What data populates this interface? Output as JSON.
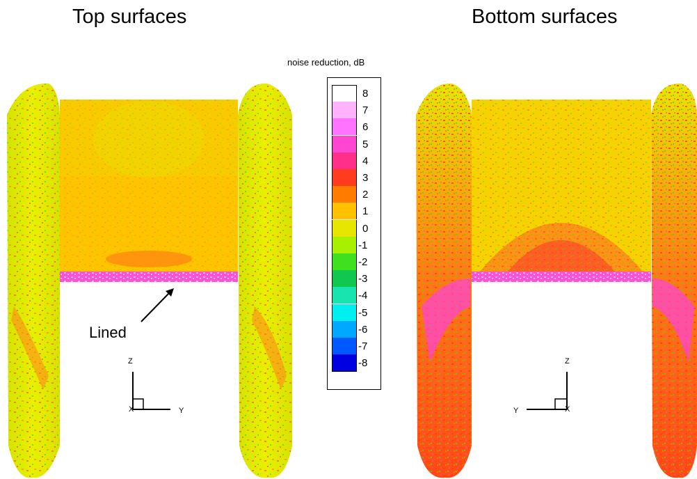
{
  "panels": {
    "top": {
      "title": "Top surfaces"
    },
    "bottom": {
      "title": "Bottom surfaces"
    }
  },
  "legend": {
    "title": "noise reduction, dB",
    "levels": [
      8,
      7,
      6,
      5,
      4,
      3,
      2,
      1,
      0,
      -1,
      -2,
      -3,
      -4,
      -5,
      -6,
      -7,
      -8
    ],
    "colors": [
      "#ffffff",
      "#ffb3ff",
      "#ff73ff",
      "#ff46d2",
      "#ff2f8a",
      "#ff3c1e",
      "#ff7c00",
      "#ffc100",
      "#e6e600",
      "#a6f000",
      "#3fe020",
      "#10c850",
      "#18e4b0",
      "#00f0f0",
      "#00a8ff",
      "#0058ff",
      "#0000e0"
    ]
  },
  "annotation": {
    "text": "Lined"
  },
  "axes": {
    "left": {
      "z": "Z",
      "x": "X",
      "y": "Y"
    },
    "right": {
      "z": "Z",
      "y": "Y",
      "x": "X"
    }
  }
}
